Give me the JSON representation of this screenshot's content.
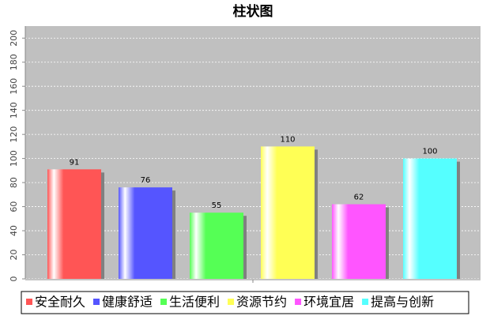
{
  "chart_data": {
    "type": "bar",
    "title": "柱状图",
    "categories": [
      null
    ],
    "series": [
      {
        "name": "安全耐久",
        "color": "#ff5555",
        "values": [
          91
        ]
      },
      {
        "name": "健康舒适",
        "color": "#5555ff",
        "values": [
          76
        ]
      },
      {
        "name": "生活便利",
        "color": "#55ff55",
        "values": [
          55
        ]
      },
      {
        "name": "资源节约",
        "color": "#ffff55",
        "values": [
          110
        ]
      },
      {
        "name": "环境宜居",
        "color": "#ff55ff",
        "values": [
          62
        ]
      },
      {
        "name": "提高与创新",
        "color": "#55ffff",
        "values": [
          100
        ]
      }
    ],
    "ylim": [
      0,
      210
    ],
    "yticks": [
      0,
      20,
      40,
      60,
      80,
      100,
      120,
      140,
      160,
      180,
      200
    ],
    "grid": true,
    "legend": "bottom"
  }
}
